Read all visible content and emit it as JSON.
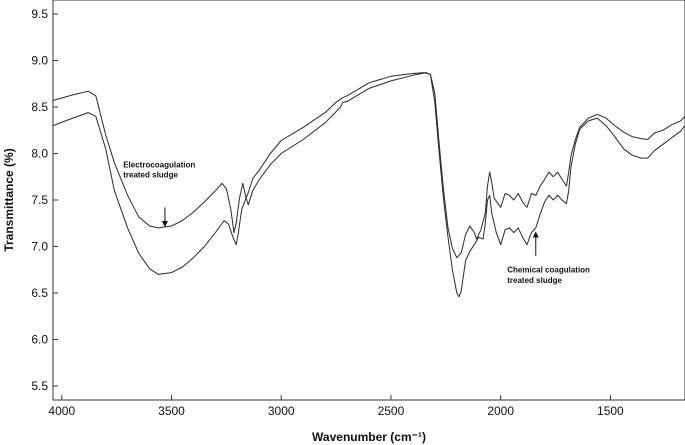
{
  "chart_data": {
    "type": "line",
    "title": "",
    "xlabel": "Wavenumber (cm⁻¹)",
    "ylabel": "Transmittance (%)",
    "xlim": [
      4040,
      1160
    ],
    "ylim": [
      5.35,
      9.65
    ],
    "x_reversed": true,
    "grid": false,
    "legend": "none",
    "xticks": [
      4000,
      3500,
      3000,
      2500,
      2000,
      1500
    ],
    "yticks": [
      5.5,
      6.0,
      6.5,
      7.0,
      7.5,
      8.0,
      8.5,
      9.0,
      9.5
    ],
    "xtick_labels": [
      "4000",
      "3500",
      "3000",
      "2500",
      "2000",
      "1500"
    ],
    "ytick_labels": [
      "5.5",
      "6.0",
      "6.5",
      "7.0",
      "7.5",
      "8.0",
      "8.5",
      "9.0",
      "9.5"
    ],
    "series": [
      {
        "color": "#2a2a2a",
        "points": [
          [
            4040,
            8.57
          ],
          [
            3950,
            8.63
          ],
          [
            3880,
            8.67
          ],
          [
            3845,
            8.62
          ],
          [
            3800,
            8.2
          ],
          [
            3760,
            7.9
          ],
          [
            3700,
            7.55
          ],
          [
            3650,
            7.32
          ],
          [
            3600,
            7.22
          ],
          [
            3560,
            7.2
          ],
          [
            3500,
            7.22
          ],
          [
            3450,
            7.28
          ],
          [
            3400,
            7.37
          ],
          [
            3350,
            7.48
          ],
          [
            3300,
            7.6
          ],
          [
            3270,
            7.68
          ],
          [
            3250,
            7.62
          ],
          [
            3230,
            7.4
          ],
          [
            3215,
            7.15
          ],
          [
            3205,
            7.25
          ],
          [
            3190,
            7.52
          ],
          [
            3175,
            7.68
          ],
          [
            3160,
            7.52
          ],
          [
            3150,
            7.58
          ],
          [
            3130,
            7.73
          ],
          [
            3100,
            7.82
          ],
          [
            3050,
            8.0
          ],
          [
            3000,
            8.14
          ],
          [
            2900,
            8.28
          ],
          [
            2800,
            8.44
          ],
          [
            2750,
            8.55
          ],
          [
            2720,
            8.6
          ],
          [
            2700,
            8.62
          ],
          [
            2600,
            8.76
          ],
          [
            2500,
            8.83
          ],
          [
            2400,
            8.86
          ],
          [
            2350,
            8.87
          ],
          [
            2320,
            8.85
          ],
          [
            2300,
            8.65
          ],
          [
            2280,
            8.1
          ],
          [
            2260,
            7.6
          ],
          [
            2240,
            7.2
          ],
          [
            2220,
            6.98
          ],
          [
            2200,
            6.88
          ],
          [
            2180,
            6.93
          ],
          [
            2160,
            7.13
          ],
          [
            2140,
            7.22
          ],
          [
            2120,
            7.15
          ],
          [
            2110,
            7.08
          ],
          [
            2090,
            7.18
          ],
          [
            2070,
            7.36
          ],
          [
            2060,
            7.65
          ],
          [
            2050,
            7.8
          ],
          [
            2040,
            7.68
          ],
          [
            2030,
            7.52
          ],
          [
            2000,
            7.42
          ],
          [
            1980,
            7.57
          ],
          [
            1960,
            7.55
          ],
          [
            1940,
            7.5
          ],
          [
            1920,
            7.57
          ],
          [
            1900,
            7.48
          ],
          [
            1880,
            7.42
          ],
          [
            1860,
            7.57
          ],
          [
            1840,
            7.55
          ],
          [
            1820,
            7.65
          ],
          [
            1800,
            7.72
          ],
          [
            1780,
            7.8
          ],
          [
            1760,
            7.75
          ],
          [
            1740,
            7.8
          ],
          [
            1720,
            7.72
          ],
          [
            1700,
            7.65
          ],
          [
            1690,
            7.8
          ],
          [
            1680,
            7.97
          ],
          [
            1660,
            8.15
          ],
          [
            1640,
            8.28
          ],
          [
            1600,
            8.38
          ],
          [
            1560,
            8.42
          ],
          [
            1520,
            8.38
          ],
          [
            1480,
            8.3
          ],
          [
            1440,
            8.23
          ],
          [
            1400,
            8.18
          ],
          [
            1360,
            8.16
          ],
          [
            1330,
            8.15
          ],
          [
            1300,
            8.22
          ],
          [
            1260,
            8.25
          ],
          [
            1220,
            8.31
          ],
          [
            1180,
            8.35
          ],
          [
            1160,
            8.4
          ]
        ]
      },
      {
        "color": "#2a2a2a",
        "points": [
          [
            4040,
            8.3
          ],
          [
            3950,
            8.38
          ],
          [
            3880,
            8.44
          ],
          [
            3845,
            8.4
          ],
          [
            3800,
            8.05
          ],
          [
            3760,
            7.6
          ],
          [
            3700,
            7.2
          ],
          [
            3650,
            6.93
          ],
          [
            3600,
            6.76
          ],
          [
            3560,
            6.7
          ],
          [
            3500,
            6.72
          ],
          [
            3450,
            6.78
          ],
          [
            3400,
            6.88
          ],
          [
            3350,
            7.0
          ],
          [
            3300,
            7.15
          ],
          [
            3260,
            7.28
          ],
          [
            3240,
            7.24
          ],
          [
            3220,
            7.1
          ],
          [
            3205,
            7.02
          ],
          [
            3195,
            7.15
          ],
          [
            3180,
            7.4
          ],
          [
            3160,
            7.52
          ],
          [
            3150,
            7.45
          ],
          [
            3130,
            7.6
          ],
          [
            3100,
            7.72
          ],
          [
            3050,
            7.88
          ],
          [
            3000,
            8.0
          ],
          [
            2900,
            8.15
          ],
          [
            2800,
            8.33
          ],
          [
            2750,
            8.45
          ],
          [
            2730,
            8.5
          ],
          [
            2720,
            8.55
          ],
          [
            2700,
            8.56
          ],
          [
            2600,
            8.7
          ],
          [
            2500,
            8.78
          ],
          [
            2400,
            8.84
          ],
          [
            2340,
            8.87
          ],
          [
            2320,
            8.85
          ],
          [
            2300,
            8.55
          ],
          [
            2280,
            8.0
          ],
          [
            2260,
            7.5
          ],
          [
            2240,
            7.1
          ],
          [
            2220,
            6.75
          ],
          [
            2200,
            6.5
          ],
          [
            2190,
            6.46
          ],
          [
            2180,
            6.52
          ],
          [
            2160,
            6.85
          ],
          [
            2140,
            6.95
          ],
          [
            2120,
            7.02
          ],
          [
            2100,
            7.1
          ],
          [
            2080,
            7.08
          ],
          [
            2070,
            7.25
          ],
          [
            2060,
            7.5
          ],
          [
            2050,
            7.55
          ],
          [
            2040,
            7.35
          ],
          [
            2020,
            7.15
          ],
          [
            2000,
            7.02
          ],
          [
            1980,
            7.18
          ],
          [
            1960,
            7.2
          ],
          [
            1940,
            7.15
          ],
          [
            1920,
            7.2
          ],
          [
            1900,
            7.1
          ],
          [
            1880,
            7.02
          ],
          [
            1860,
            7.15
          ],
          [
            1840,
            7.2
          ],
          [
            1820,
            7.35
          ],
          [
            1800,
            7.48
          ],
          [
            1780,
            7.55
          ],
          [
            1760,
            7.5
          ],
          [
            1740,
            7.55
          ],
          [
            1720,
            7.5
          ],
          [
            1700,
            7.46
          ],
          [
            1690,
            7.6
          ],
          [
            1680,
            7.85
          ],
          [
            1660,
            8.1
          ],
          [
            1640,
            8.26
          ],
          [
            1600,
            8.35
          ],
          [
            1560,
            8.38
          ],
          [
            1520,
            8.3
          ],
          [
            1480,
            8.18
          ],
          [
            1440,
            8.05
          ],
          [
            1400,
            7.98
          ],
          [
            1360,
            7.95
          ],
          [
            1330,
            7.95
          ],
          [
            1300,
            8.03
          ],
          [
            1260,
            8.1
          ],
          [
            1220,
            8.17
          ],
          [
            1180,
            8.24
          ],
          [
            1160,
            8.3
          ]
        ]
      }
    ],
    "annotations": [
      {
        "lines": [
          "Electrocoagulation",
          "treated sludge"
        ],
        "arrow_from": [
          3530,
          7.42
        ],
        "arrow_to": [
          3530,
          7.22
        ],
        "text_x": 3720,
        "text_y": [
          7.85,
          7.74
        ]
      },
      {
        "lines": [
          "Chemical coagulation",
          "treated sludge"
        ],
        "arrow_from": [
          1840,
          6.9
        ],
        "arrow_to": [
          1840,
          7.15
        ],
        "text_x": 1970,
        "text_y": [
          6.72,
          6.61
        ]
      }
    ]
  }
}
